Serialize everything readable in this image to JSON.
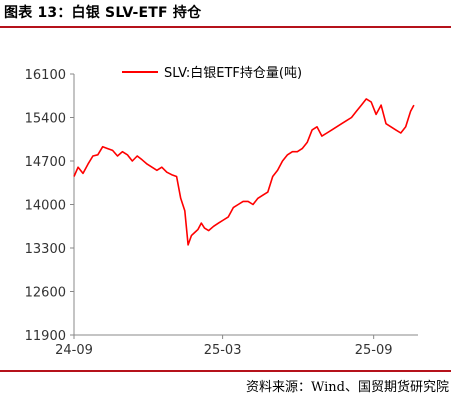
{
  "header": {
    "title": "图表 13：白银 SLV-ETF 持仓"
  },
  "footer": {
    "source": "资料来源：Wind、国贸期货研究院"
  },
  "colors": {
    "line": "#ff0000",
    "rule": "#b5121b",
    "axis": "#888888"
  },
  "chart_data": {
    "type": "line",
    "title": "",
    "xlabel": "",
    "ylabel": "",
    "x_tick_labels": [
      "24-09",
      "25-03",
      "25-09"
    ],
    "x_tick_dates": [
      "2024-09-01",
      "2025-03-01",
      "2025-09-01"
    ],
    "xlim": [
      "2024-09-01",
      "2025-10-25"
    ],
    "ylim": [
      11900,
      16100
    ],
    "yticks": [
      11900,
      12600,
      13300,
      14000,
      14700,
      15400,
      16100
    ],
    "grid": false,
    "legend_position": "top",
    "series": [
      {
        "name": "SLV:白银ETF持仓量(吨)",
        "color": "#ff0000",
        "x": [
          "2024-09-01",
          "2024-09-06",
          "2024-09-12",
          "2024-09-18",
          "2024-09-24",
          "2024-09-30",
          "2024-10-06",
          "2024-10-12",
          "2024-10-18",
          "2024-10-24",
          "2024-10-30",
          "2024-11-05",
          "2024-11-11",
          "2024-11-17",
          "2024-11-23",
          "2024-11-29",
          "2024-12-05",
          "2024-12-11",
          "2024-12-17",
          "2024-12-23",
          "2024-12-29",
          "2025-01-04",
          "2025-01-09",
          "2025-01-14",
          "2025-01-18",
          "2025-01-22",
          "2025-01-26",
          "2025-01-30",
          "2025-02-03",
          "2025-02-07",
          "2025-02-12",
          "2025-02-18",
          "2025-02-24",
          "2025-03-02",
          "2025-03-08",
          "2025-03-14",
          "2025-03-20",
          "2025-03-26",
          "2025-04-01",
          "2025-04-07",
          "2025-04-13",
          "2025-04-19",
          "2025-04-25",
          "2025-05-01",
          "2025-05-07",
          "2025-05-13",
          "2025-05-19",
          "2025-05-25",
          "2025-05-31",
          "2025-06-06",
          "2025-06-12",
          "2025-06-18",
          "2025-06-24",
          "2025-06-30",
          "2025-07-06",
          "2025-07-12",
          "2025-07-18",
          "2025-07-24",
          "2025-07-30",
          "2025-08-05",
          "2025-08-11",
          "2025-08-17",
          "2025-08-23",
          "2025-08-29",
          "2025-09-04",
          "2025-09-10",
          "2025-09-16",
          "2025-09-22",
          "2025-09-28",
          "2025-10-04",
          "2025-10-10",
          "2025-10-16",
          "2025-10-20"
        ],
        "y": [
          14450,
          14600,
          14500,
          14650,
          14780,
          14800,
          14930,
          14900,
          14870,
          14780,
          14850,
          14800,
          14700,
          14780,
          14720,
          14650,
          14600,
          14550,
          14600,
          14520,
          14480,
          14450,
          14100,
          13900,
          13350,
          13500,
          13550,
          13600,
          13700,
          13620,
          13580,
          13650,
          13700,
          13750,
          13800,
          13950,
          14000,
          14050,
          14050,
          14000,
          14100,
          14150,
          14200,
          14450,
          14550,
          14700,
          14800,
          14850,
          14850,
          14900,
          15000,
          15200,
          15250,
          15100,
          15150,
          15200,
          15250,
          15300,
          15350,
          15400,
          15500,
          15600,
          15700,
          15650,
          15450,
          15600,
          15300,
          15250,
          15200,
          15150,
          15250,
          15500,
          15600
        ]
      }
    ]
  }
}
